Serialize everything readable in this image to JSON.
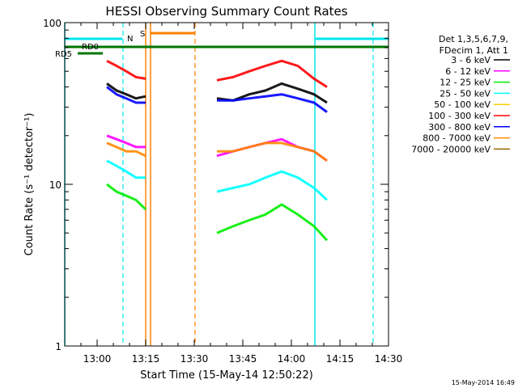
{
  "chart_data": {
    "type": "line",
    "title": "HESSI Observing Summary Count Rates",
    "xlabel": "Start Time (15-May-14 12:50:22)",
    "ylabel": "Count Rate (s⁻¹ detector⁻¹)",
    "yscale": "log",
    "ylim": [
      1,
      100
    ],
    "xlim": [
      "12:50",
      "14:30"
    ],
    "x_ticks": [
      "13:00",
      "13:15",
      "13:30",
      "13:45",
      "14:00",
      "14:15",
      "14:30"
    ],
    "y_ticks": [
      "1",
      "10",
      "100"
    ],
    "legend": {
      "header": [
        "Det 1,3,5,6,7,9,",
        "FDecim 1, Att 1"
      ],
      "placement": "right",
      "entries": [
        {
          "label": "3 - 6 keV",
          "color": "#000000"
        },
        {
          "label": "6 - 12 keV",
          "color": "#ff00ff"
        },
        {
          "label": "12 - 25 keV",
          "color": "#00ee00"
        },
        {
          "label": "25 - 50 keV",
          "color": "#00ffff"
        },
        {
          "label": "50 - 100 keV",
          "color": "#ffcc00"
        },
        {
          "label": "100 - 300 keV",
          "color": "#ff0000"
        },
        {
          "label": "300 - 800 keV",
          "color": "#0000ff"
        },
        {
          "label": "800 - 7000 keV",
          "color": "#ff8800"
        },
        {
          "label": "7000 - 20000 keV",
          "color": "#996600"
        }
      ]
    },
    "flag_labels": {
      "night": "N",
      "saa": "S",
      "rd0": "RD0",
      "rd5": "RD5"
    },
    "segments": [
      {
        "start": "13:03",
        "end": "13:17"
      },
      {
        "start": "13:37",
        "end": "14:12"
      }
    ],
    "series": [
      {
        "name": "3 - 6 keV",
        "color": "#000000",
        "x": [
          "13:03",
          "13:06",
          "13:09",
          "13:12",
          "13:15",
          "13:37",
          "13:42",
          "13:47",
          "13:52",
          "13:57",
          "14:02",
          "14:07",
          "14:11"
        ],
        "y": [
          42,
          38,
          36,
          34,
          35,
          34,
          33,
          36,
          38,
          42,
          39,
          36,
          32
        ]
      },
      {
        "name": "6 - 12 keV",
        "color": "#ff00ff",
        "x": [
          "13:03",
          "13:06",
          "13:09",
          "13:12",
          "13:15",
          "13:37",
          "13:42",
          "13:47",
          "13:52",
          "13:57",
          "14:02",
          "14:07",
          "14:11"
        ],
        "y": [
          20,
          19,
          18,
          17,
          17,
          15,
          16,
          17,
          18,
          19,
          17,
          16,
          14
        ]
      },
      {
        "name": "12 - 25 keV",
        "color": "#00ee00",
        "x": [
          "13:03",
          "13:06",
          "13:09",
          "13:12",
          "13:15",
          "13:37",
          "13:42",
          "13:47",
          "13:52",
          "13:57",
          "14:02",
          "14:07",
          "14:11"
        ],
        "y": [
          10,
          9,
          8.5,
          8,
          7,
          5,
          5.5,
          6,
          6.5,
          7.5,
          6.5,
          5.5,
          4.5
        ]
      },
      {
        "name": "25 - 50 keV",
        "color": "#00ffff",
        "x": [
          "13:03",
          "13:06",
          "13:09",
          "13:12",
          "13:15",
          "13:37",
          "13:42",
          "13:47",
          "13:52",
          "13:57",
          "14:02",
          "14:07",
          "14:11"
        ],
        "y": [
          14,
          13,
          12,
          11,
          11,
          9,
          9.5,
          10,
          11,
          12,
          11,
          9.5,
          8
        ]
      },
      {
        "name": "100 - 300 keV",
        "color": "#ff0000",
        "x": [
          "13:03",
          "13:06",
          "13:09",
          "13:12",
          "13:15",
          "13:37",
          "13:42",
          "13:47",
          "13:52",
          "13:57",
          "14:02",
          "14:07",
          "14:11"
        ],
        "y": [
          58,
          54,
          50,
          46,
          45,
          44,
          46,
          50,
          54,
          58,
          54,
          45,
          40
        ]
      },
      {
        "name": "300 - 800 keV",
        "color": "#0000ff",
        "x": [
          "13:03",
          "13:06",
          "13:09",
          "13:12",
          "13:15",
          "13:37",
          "13:42",
          "13:47",
          "13:52",
          "13:57",
          "14:02",
          "14:07",
          "14:11"
        ],
        "y": [
          40,
          36,
          34,
          32,
          32,
          33,
          33,
          34,
          35,
          36,
          34,
          32,
          28
        ]
      },
      {
        "name": "800 - 7000 keV",
        "color": "#ff8800",
        "x": [
          "13:03",
          "13:06",
          "13:09",
          "13:12",
          "13:15",
          "13:37",
          "13:42",
          "13:47",
          "13:52",
          "13:57",
          "14:02",
          "14:07",
          "14:11"
        ],
        "y": [
          18,
          17,
          16,
          16,
          15,
          16,
          16,
          17,
          18,
          18,
          17,
          16,
          14
        ]
      }
    ]
  },
  "footer_timestamp": "15-May-2014 16:49"
}
